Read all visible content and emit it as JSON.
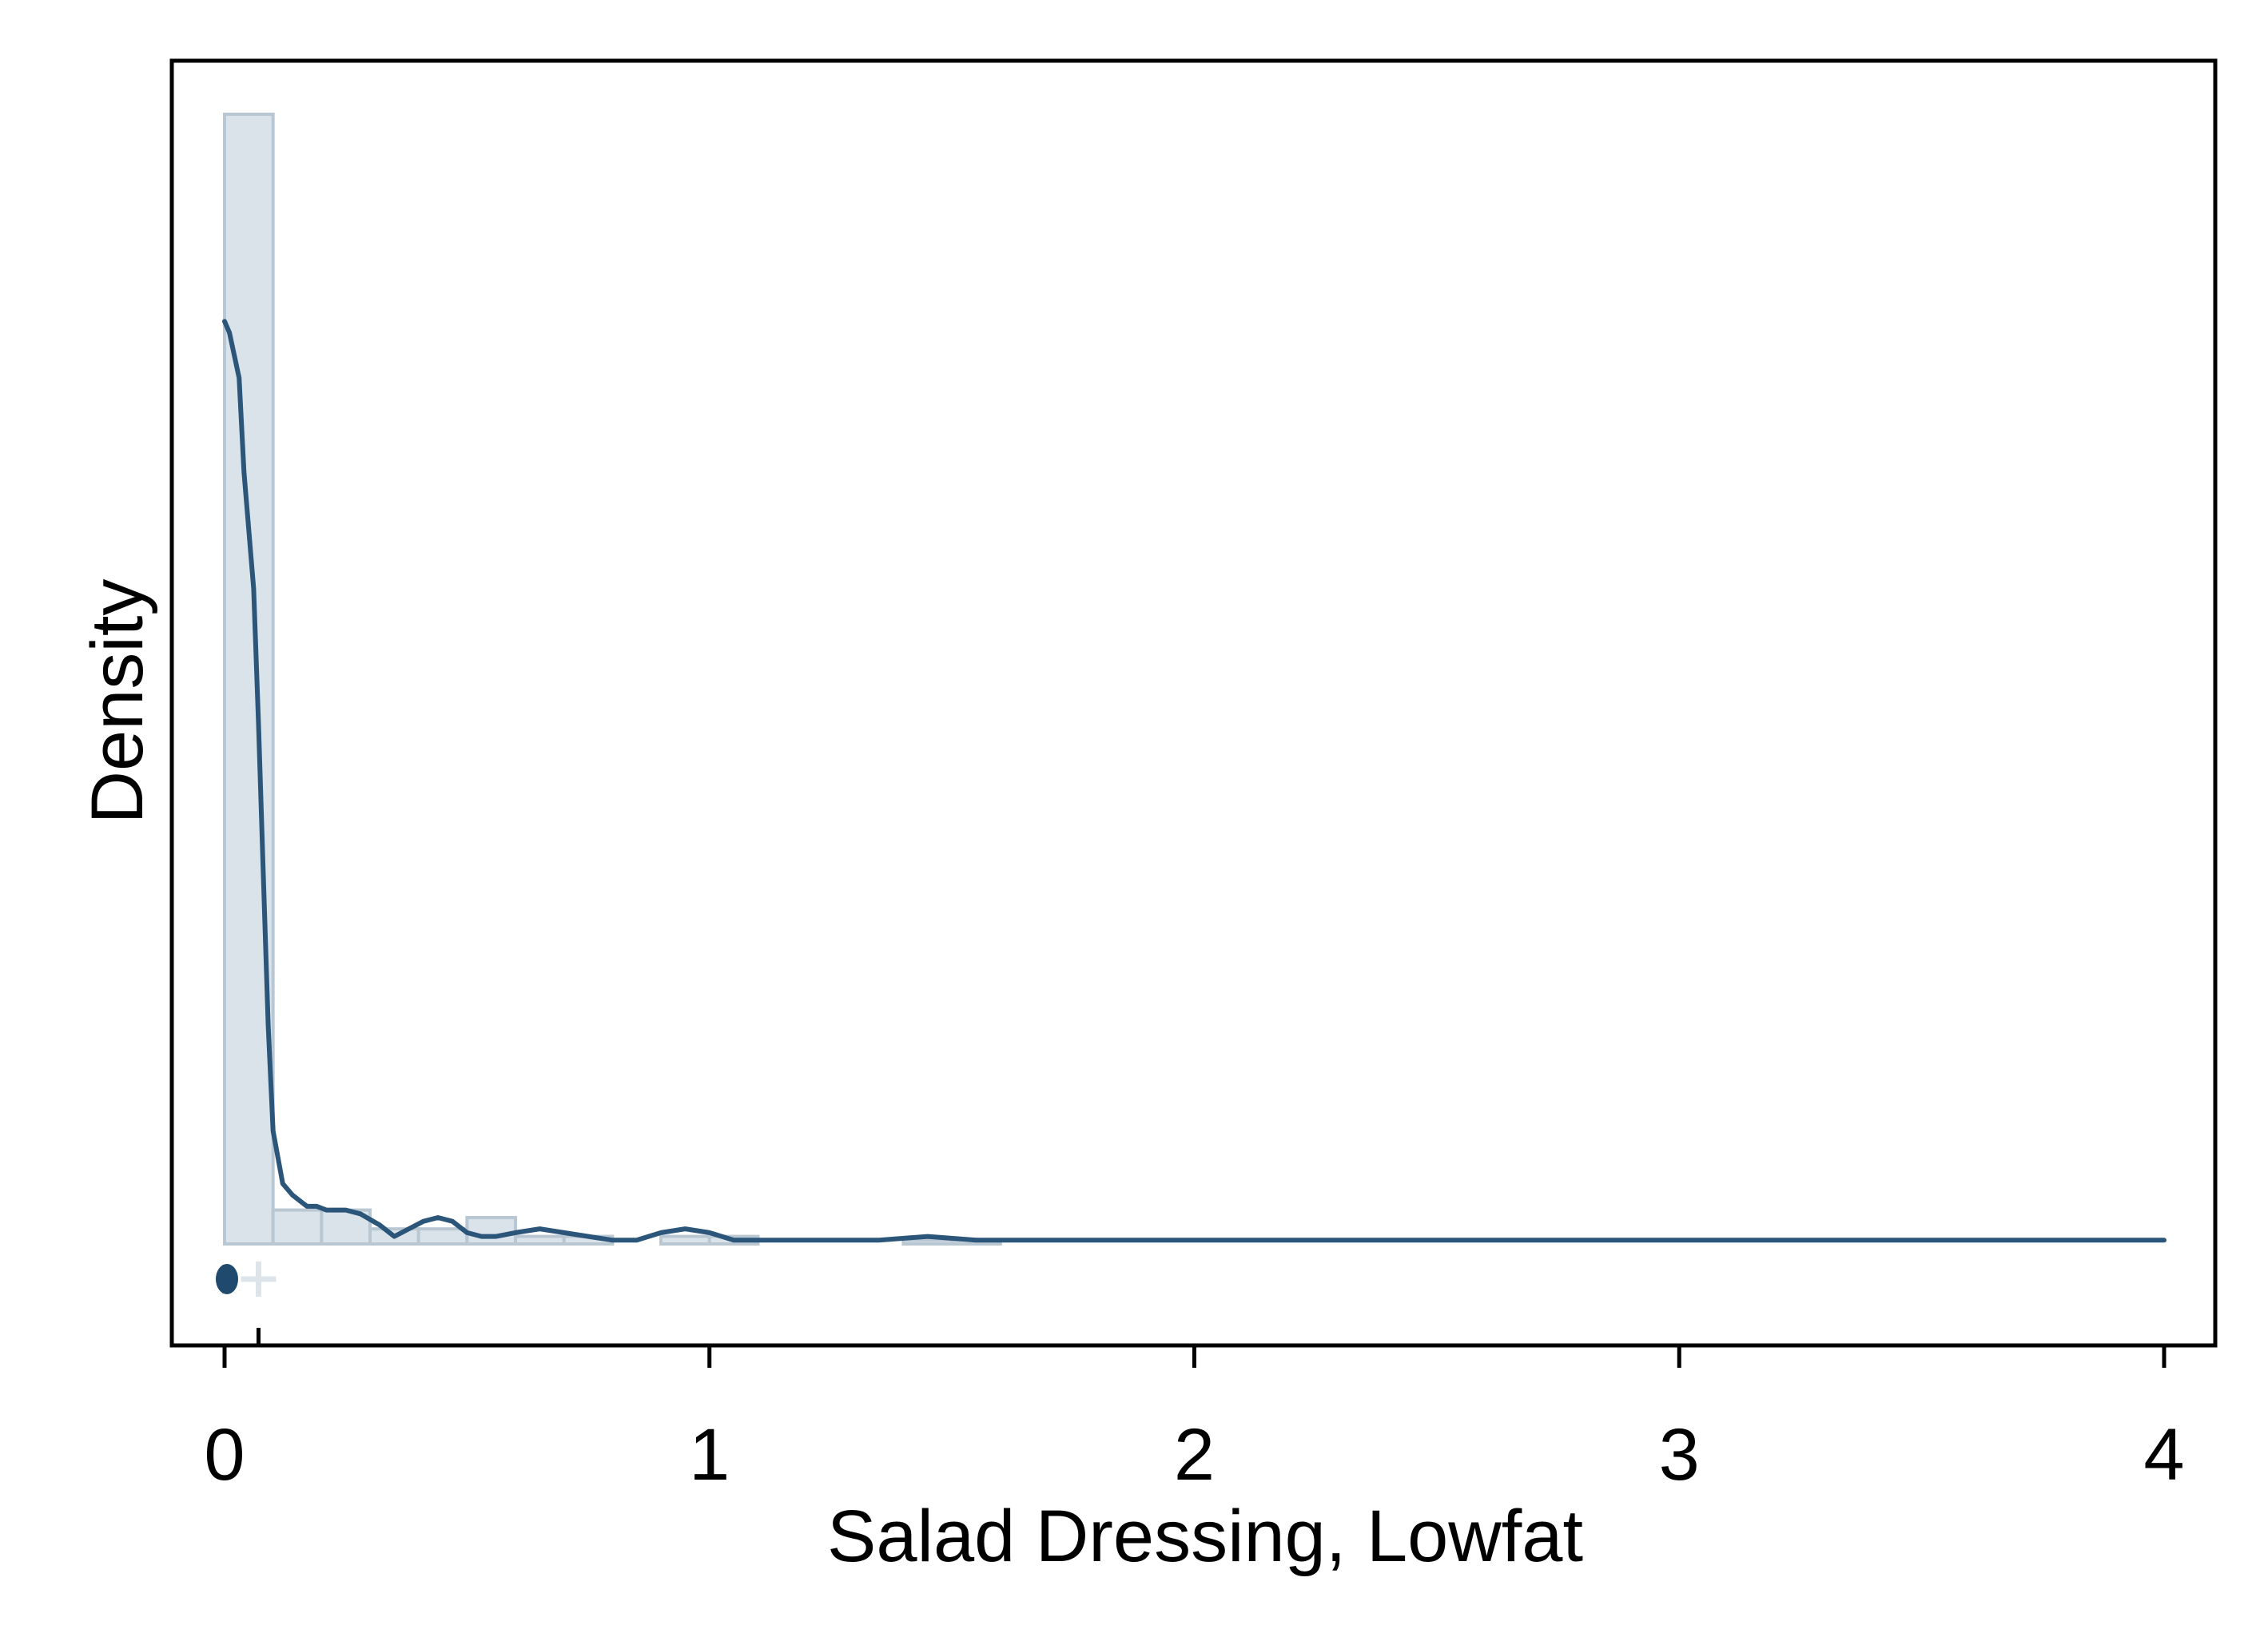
{
  "chart_data": {
    "type": "histogram",
    "title": "",
    "xlabel": "Salad Dressing, Lowfat",
    "ylabel": "Density",
    "xlim": [
      -0.11,
      4.11
    ],
    "ylim": [
      0,
      4.0
    ],
    "x_ticks": [
      0,
      1,
      2,
      3,
      4
    ],
    "x_tick_labels": [
      "0",
      "1",
      "2",
      "3",
      "4"
    ],
    "y_ticks": [],
    "grid": false,
    "legend": "none",
    "histogram": {
      "name": "histogram",
      "color": "#dbe3ea",
      "edge_color": "#b9c7d3",
      "bins": [
        {
          "x0": 0.0,
          "x1": 0.1,
          "density": 3.0
        },
        {
          "x0": 0.1,
          "x1": 0.2,
          "density": 0.09
        },
        {
          "x0": 0.2,
          "x1": 0.3,
          "density": 0.09
        },
        {
          "x0": 0.3,
          "x1": 0.4,
          "density": 0.04
        },
        {
          "x0": 0.4,
          "x1": 0.5,
          "density": 0.04
        },
        {
          "x0": 0.5,
          "x1": 0.6,
          "density": 0.07
        },
        {
          "x0": 0.6,
          "x1": 0.7,
          "density": 0.02
        },
        {
          "x0": 0.7,
          "x1": 0.8,
          "density": 0.02
        },
        {
          "x0": 0.8,
          "x1": 0.9,
          "density": 0.0
        },
        {
          "x0": 0.9,
          "x1": 1.0,
          "density": 0.02
        },
        {
          "x0": 1.0,
          "x1": 1.1,
          "density": 0.02
        },
        {
          "x0": 1.4,
          "x1": 1.5,
          "density": 0.01
        },
        {
          "x0": 1.5,
          "x1": 1.6,
          "density": 0.01
        }
      ]
    },
    "kde": {
      "name": "kernel density",
      "color": "#2b567a",
      "x": [
        0.0,
        0.01,
        0.03,
        0.04,
        0.06,
        0.07,
        0.08,
        0.09,
        0.1,
        0.12,
        0.14,
        0.17,
        0.19,
        0.21,
        0.23,
        0.25,
        0.28,
        0.32,
        0.35,
        0.38,
        0.41,
        0.44,
        0.47,
        0.5,
        0.53,
        0.56,
        0.6,
        0.65,
        0.7,
        0.75,
        0.8,
        0.85,
        0.9,
        0.95,
        1.0,
        1.05,
        1.1,
        1.2,
        1.3,
        1.35,
        1.45,
        1.55,
        1.6,
        1.8,
        1.9,
        2.0,
        2.1,
        2.3,
        3.0,
        3.5,
        3.9,
        4.0
      ],
      "y": [
        2.45,
        2.42,
        2.3,
        2.05,
        1.74,
        1.38,
        0.98,
        0.58,
        0.3,
        0.16,
        0.13,
        0.1,
        0.1,
        0.09,
        0.09,
        0.09,
        0.08,
        0.05,
        0.02,
        0.04,
        0.06,
        0.07,
        0.06,
        0.03,
        0.02,
        0.02,
        0.03,
        0.04,
        0.03,
        0.02,
        0.01,
        0.01,
        0.03,
        0.04,
        0.03,
        0.01,
        0.01,
        0.01,
        0.01,
        0.01,
        0.02,
        0.01,
        0.01,
        0.01,
        0.01,
        0.01,
        0.01,
        0.01,
        0.01,
        0.01,
        0.01,
        0.01
      ]
    },
    "box_markers": {
      "median": 0.0,
      "mean": 0.07,
      "median_color": "#1f4a6e",
      "mean_color": "#dde4ea",
      "mean_symbol": "+"
    }
  }
}
